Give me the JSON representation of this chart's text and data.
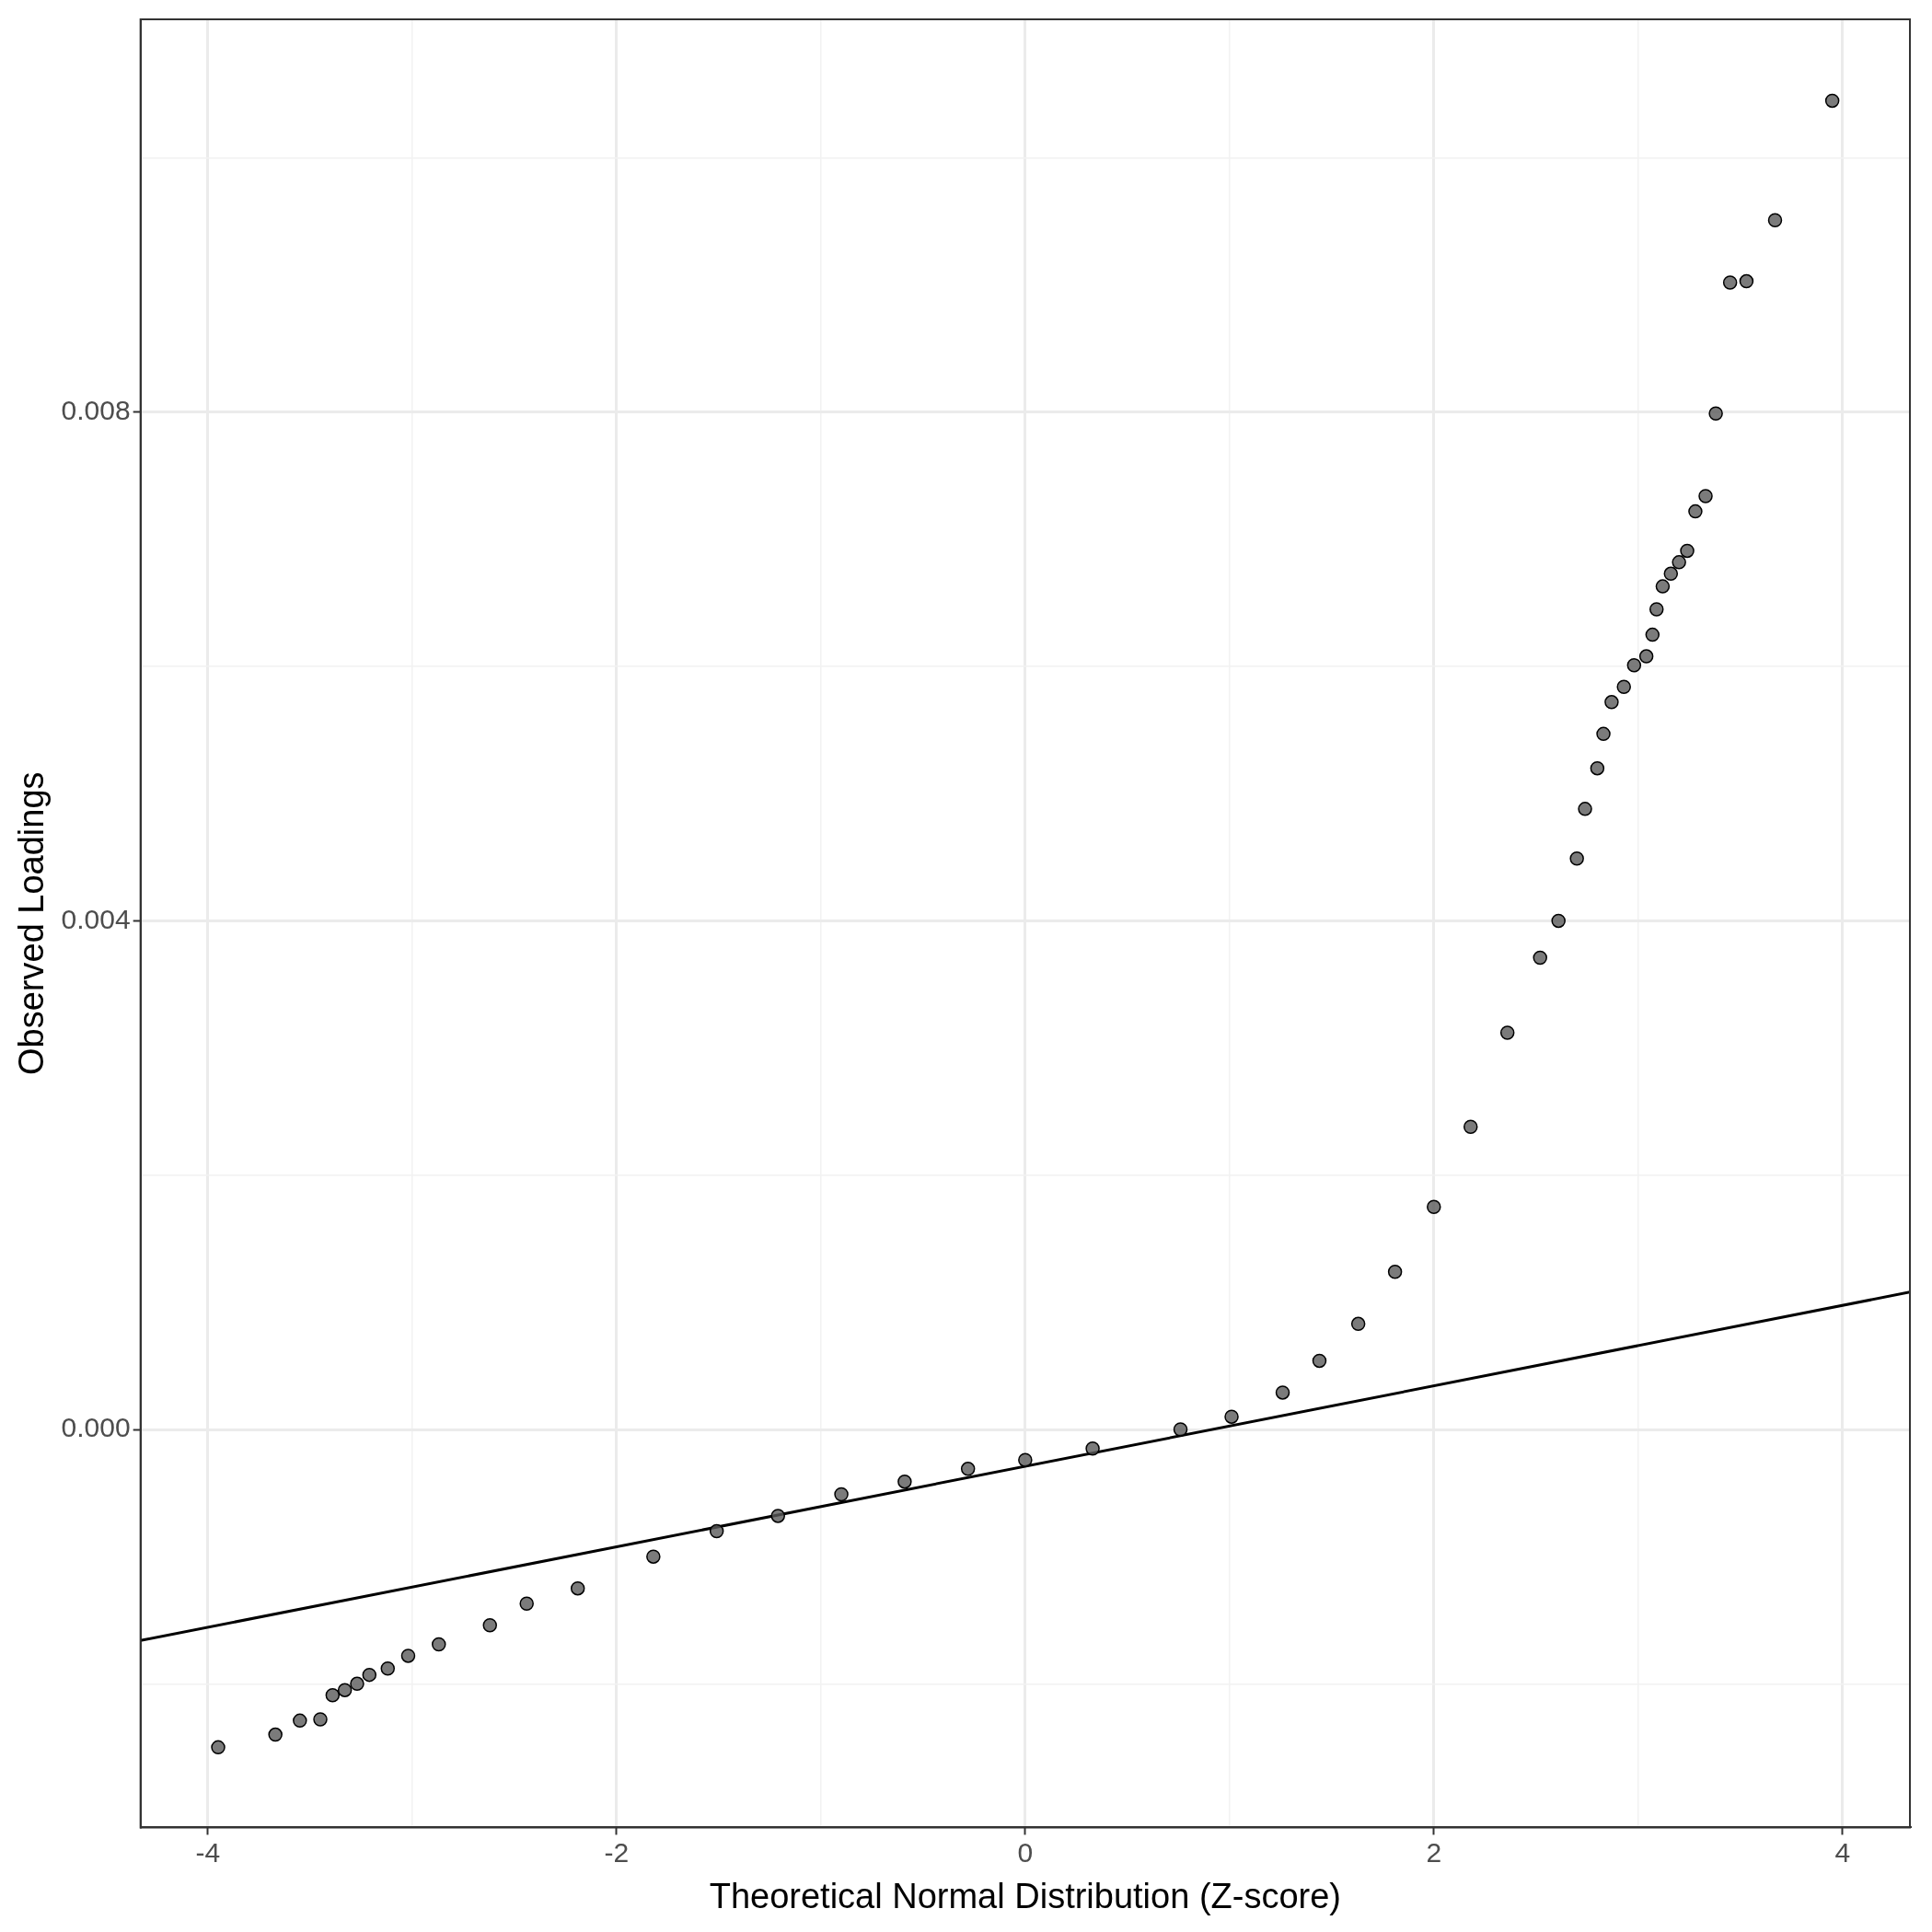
{
  "chart_data": {
    "type": "scatter",
    "xlabel": "Theoretical Normal Distribution (Z-score)",
    "ylabel": "Observed Loadings",
    "xlim": [
      -4.33,
      4.33
    ],
    "ylim": [
      -0.00313,
      0.01109
    ],
    "xticks": [
      -4,
      {
        "value": -3,
        "label": null
      },
      -2,
      {
        "value": -1,
        "label": null
      },
      0,
      {
        "value": 1,
        "label": null
      },
      2,
      {
        "value": 3,
        "label": null
      },
      4
    ],
    "yticks": [
      {
        "value": -0.002,
        "label": null
      },
      {
        "value": 0,
        "label": "0.000"
      },
      {
        "value": 0.002,
        "label": null
      },
      {
        "value": 0.004,
        "label": "0.004"
      },
      {
        "value": 0.006,
        "label": null
      },
      {
        "value": 0.008,
        "label": "0.008"
      },
      {
        "value": 0.01,
        "label": null
      }
    ],
    "grid": true,
    "legend": false,
    "marker": "circle",
    "series": [
      {
        "color": "#5a5a5a",
        "x": [
          -3.95,
          -3.67,
          -3.55,
          -3.45,
          -3.39,
          -3.33,
          -3.27,
          -3.21,
          -3.12,
          -3.02,
          -2.87,
          -2.62,
          -2.44,
          -2.19,
          -1.82,
          -1.51,
          -1.21,
          -0.9,
          -0.59,
          -0.28,
          0,
          0.33,
          0.76,
          1.01,
          1.26,
          1.44,
          1.63,
          1.81,
          2.0,
          2.18,
          2.36,
          2.52,
          2.61,
          2.7,
          2.74,
          2.8,
          2.83,
          2.87,
          2.93,
          2.98,
          3.04,
          3.07,
          3.09,
          3.12,
          3.16,
          3.2,
          3.24,
          3.28,
          3.33,
          3.38,
          3.45,
          3.53,
          3.67,
          3.95
        ],
        "values": [
          -0.0025,
          -0.0024,
          -0.00229,
          -0.00228,
          -0.00209,
          -0.00205,
          -0.002,
          -0.00193,
          -0.00188,
          -0.00178,
          -0.00169,
          -0.00154,
          -0.00137,
          -0.00125,
          -0.001,
          -0.0008,
          -0.00068,
          -0.00051,
          -0.00041,
          -0.00031,
          -0.00024,
          -0.00015,
          0,
          0.0001,
          0.00029,
          0.00054,
          0.00083,
          0.00124,
          0.00175,
          0.00238,
          0.00312,
          0.00371,
          0.004,
          0.00449,
          0.00488,
          0.0052,
          0.00547,
          0.00572,
          0.00584,
          0.00601,
          0.00608,
          0.00625,
          0.00645,
          0.00663,
          0.00673,
          0.00682,
          0.00691,
          0.00722,
          0.00734,
          0.00799,
          0.00902,
          0.00903,
          0.00951,
          0.01045
        ]
      },
      {
        "type": "line",
        "color": "#000000",
        "marker": "none",
        "x": [
          -4.33,
          4.33
        ],
        "values": [
          -0.00166,
          0.00108
        ]
      }
    ]
  }
}
